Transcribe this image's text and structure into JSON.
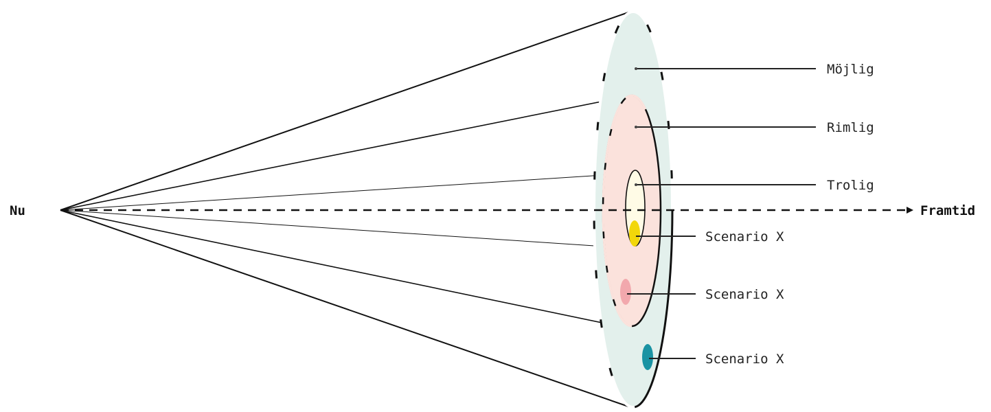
{
  "labels": {
    "origin": "Nu",
    "future": "Framtid",
    "possible": "Möjlig",
    "plausible": "Rimlig",
    "probable": "Trolig",
    "scenario_1": "Scenario X",
    "scenario_2": "Scenario X",
    "scenario_3": "Scenario X"
  },
  "colors": {
    "possible_fill": "#e3f0ec",
    "plausible_fill": "#fbe2dc",
    "probable_fill": "#fffbe6",
    "scenario_1": "#f2d70a",
    "scenario_2": "#f2a8ad",
    "scenario_3": "#1a93a3",
    "stroke": "#111111"
  }
}
